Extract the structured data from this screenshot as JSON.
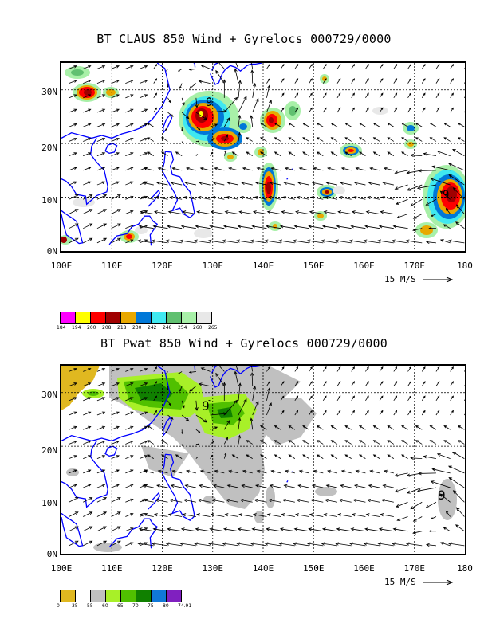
{
  "panel1": {
    "title": "BT CLAUS 850 Wind + Gyrelocs 000729/0000",
    "lat_labels": [
      "30N",
      "20N",
      "10N",
      "0N"
    ],
    "lon_labels": [
      "100E",
      "110E",
      "120E",
      "130E",
      "140E",
      "150E",
      "160E",
      "170E",
      "180"
    ],
    "ref_vector": "15 M/S",
    "colorbar_labels": [
      "184",
      "194",
      "200",
      "208",
      "218",
      "230",
      "242",
      "248",
      "254",
      "260",
      "265"
    ],
    "colorbar_colors": [
      "#ff00ff",
      "#ffff00",
      "#ff0000",
      "#a00000",
      "#e8a800",
      "#0078d8",
      "#40e8f0",
      "#60c070",
      "#a8f0a8",
      "#e8e8e8"
    ]
  },
  "panel2": {
    "title": "BT Pwat 850 Wind + Gyrelocs 000729/0000",
    "lat_labels": [
      "30N",
      "20N",
      "10N",
      "0N"
    ],
    "lon_labels": [
      "100E",
      "110E",
      "120E",
      "130E",
      "140E",
      "150E",
      "160E",
      "170E",
      "180"
    ],
    "ref_vector": "15 M/S",
    "colorbar_labels": [
      "0",
      "35",
      "55",
      "60",
      "65",
      "70",
      "75",
      "80",
      "74.91"
    ],
    "colorbar_colors": [
      "#e0b820",
      "#ffffff",
      "#c0c0c0",
      "#a8f028",
      "#50c000",
      "#108000",
      "#1078d8",
      "#8020c0"
    ]
  },
  "map": {
    "lon_range": [
      100,
      180
    ],
    "lat_range": [
      0,
      35
    ],
    "coast_color": "#0000ff",
    "gyre_symbol": "9"
  }
}
